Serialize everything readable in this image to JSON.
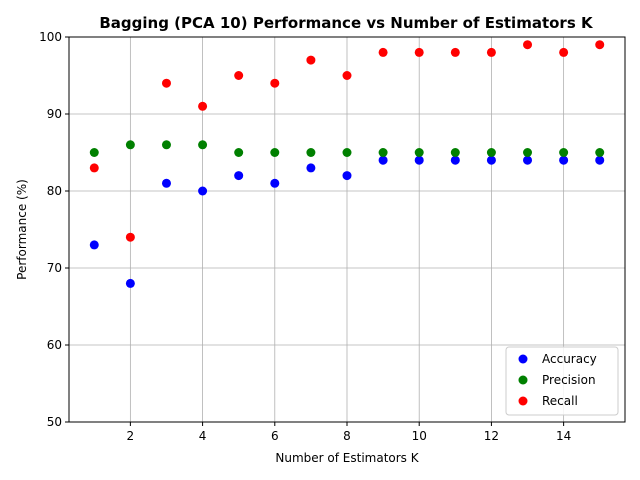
{
  "chart_data": {
    "type": "scatter",
    "title": "Bagging (PCA 10) Performance vs Number of Estimators K",
    "xlabel": "Number of Estimators K",
    "ylabel": "Performance (%)",
    "xlim": [
      0.3,
      15.7
    ],
    "ylim": [
      50,
      100
    ],
    "xticks": [
      2,
      4,
      6,
      8,
      10,
      12,
      14
    ],
    "yticks": [
      50,
      60,
      70,
      80,
      90,
      100
    ],
    "grid": true,
    "legend_position": "lower-right",
    "x": [
      1,
      2,
      3,
      4,
      5,
      6,
      7,
      8,
      9,
      10,
      11,
      12,
      13,
      14,
      15
    ],
    "series": [
      {
        "name": "Accuracy",
        "color": "#0000ff",
        "values": [
          73,
          68,
          81,
          80,
          82,
          81,
          83,
          82,
          84,
          84,
          84,
          84,
          84,
          84,
          84
        ]
      },
      {
        "name": "Precision",
        "color": "#008000",
        "values": [
          85,
          86,
          86,
          86,
          85,
          85,
          85,
          85,
          85,
          85,
          85,
          85,
          85,
          85,
          85
        ]
      },
      {
        "name": "Recall",
        "color": "#ff0000",
        "values": [
          83,
          74,
          94,
          91,
          95,
          94,
          97,
          95,
          98,
          98,
          98,
          98,
          99,
          98,
          99
        ]
      }
    ]
  }
}
